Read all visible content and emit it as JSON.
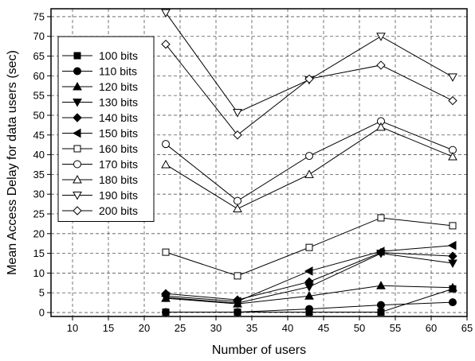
{
  "chart_data": {
    "type": "line",
    "title": "",
    "xlabel": "Number of users",
    "ylabel": "Mean Access Delay for data users (sec)",
    "xlim": [
      7,
      65
    ],
    "ylim": [
      -1,
      77
    ],
    "xticks": [
      10,
      15,
      20,
      25,
      30,
      35,
      40,
      45,
      50,
      55,
      60,
      65
    ],
    "yticks": [
      0,
      5,
      10,
      15,
      20,
      25,
      30,
      35,
      40,
      45,
      50,
      55,
      60,
      65,
      70,
      75
    ],
    "grid": true,
    "legend_position": "top-left",
    "x": [
      23,
      33,
      43,
      53,
      63
    ],
    "series": [
      {
        "name": "100 bits",
        "marker": "square",
        "fill": "filled",
        "values": [
          0.1,
          0.1,
          0.1,
          0.1,
          6.0
        ]
      },
      {
        "name": "110 bits",
        "marker": "circle",
        "fill": "filled",
        "values": [
          0.1,
          0.1,
          0.9,
          1.9,
          2.6
        ]
      },
      {
        "name": "120 bits",
        "marker": "triangle-up",
        "fill": "filled",
        "values": [
          3.6,
          2.2,
          4.2,
          6.8,
          6.3
        ]
      },
      {
        "name": "130 bits",
        "marker": "triangle-down",
        "fill": "filled",
        "values": [
          3.8,
          2.4,
          6.5,
          15.0,
          12.5
        ]
      },
      {
        "name": "140 bits",
        "marker": "diamond",
        "fill": "filled",
        "values": [
          4.8,
          3.2,
          7.8,
          15.2,
          14.3
        ]
      },
      {
        "name": "150 bits",
        "marker": "triangle-left",
        "fill": "filled",
        "values": [
          4.2,
          2.8,
          10.5,
          15.5,
          17.0
        ]
      },
      {
        "name": "160 bits",
        "marker": "square",
        "fill": "open",
        "values": [
          15.3,
          9.3,
          16.5,
          24.0,
          22.0
        ]
      },
      {
        "name": "170 bits",
        "marker": "circle",
        "fill": "open",
        "values": [
          42.7,
          28.3,
          39.7,
          48.5,
          41.2
        ]
      },
      {
        "name": "180 bits",
        "marker": "triangle-up",
        "fill": "open",
        "values": [
          37.5,
          26.3,
          35.0,
          47.0,
          39.5
        ]
      },
      {
        "name": "190 bits",
        "marker": "triangle-down",
        "fill": "open",
        "values": [
          76.0,
          50.7,
          59.0,
          70.0,
          59.7
        ]
      },
      {
        "name": "200 bits",
        "marker": "diamond",
        "fill": "open",
        "values": [
          68.0,
          45.0,
          59.2,
          62.7,
          53.7
        ]
      }
    ]
  }
}
